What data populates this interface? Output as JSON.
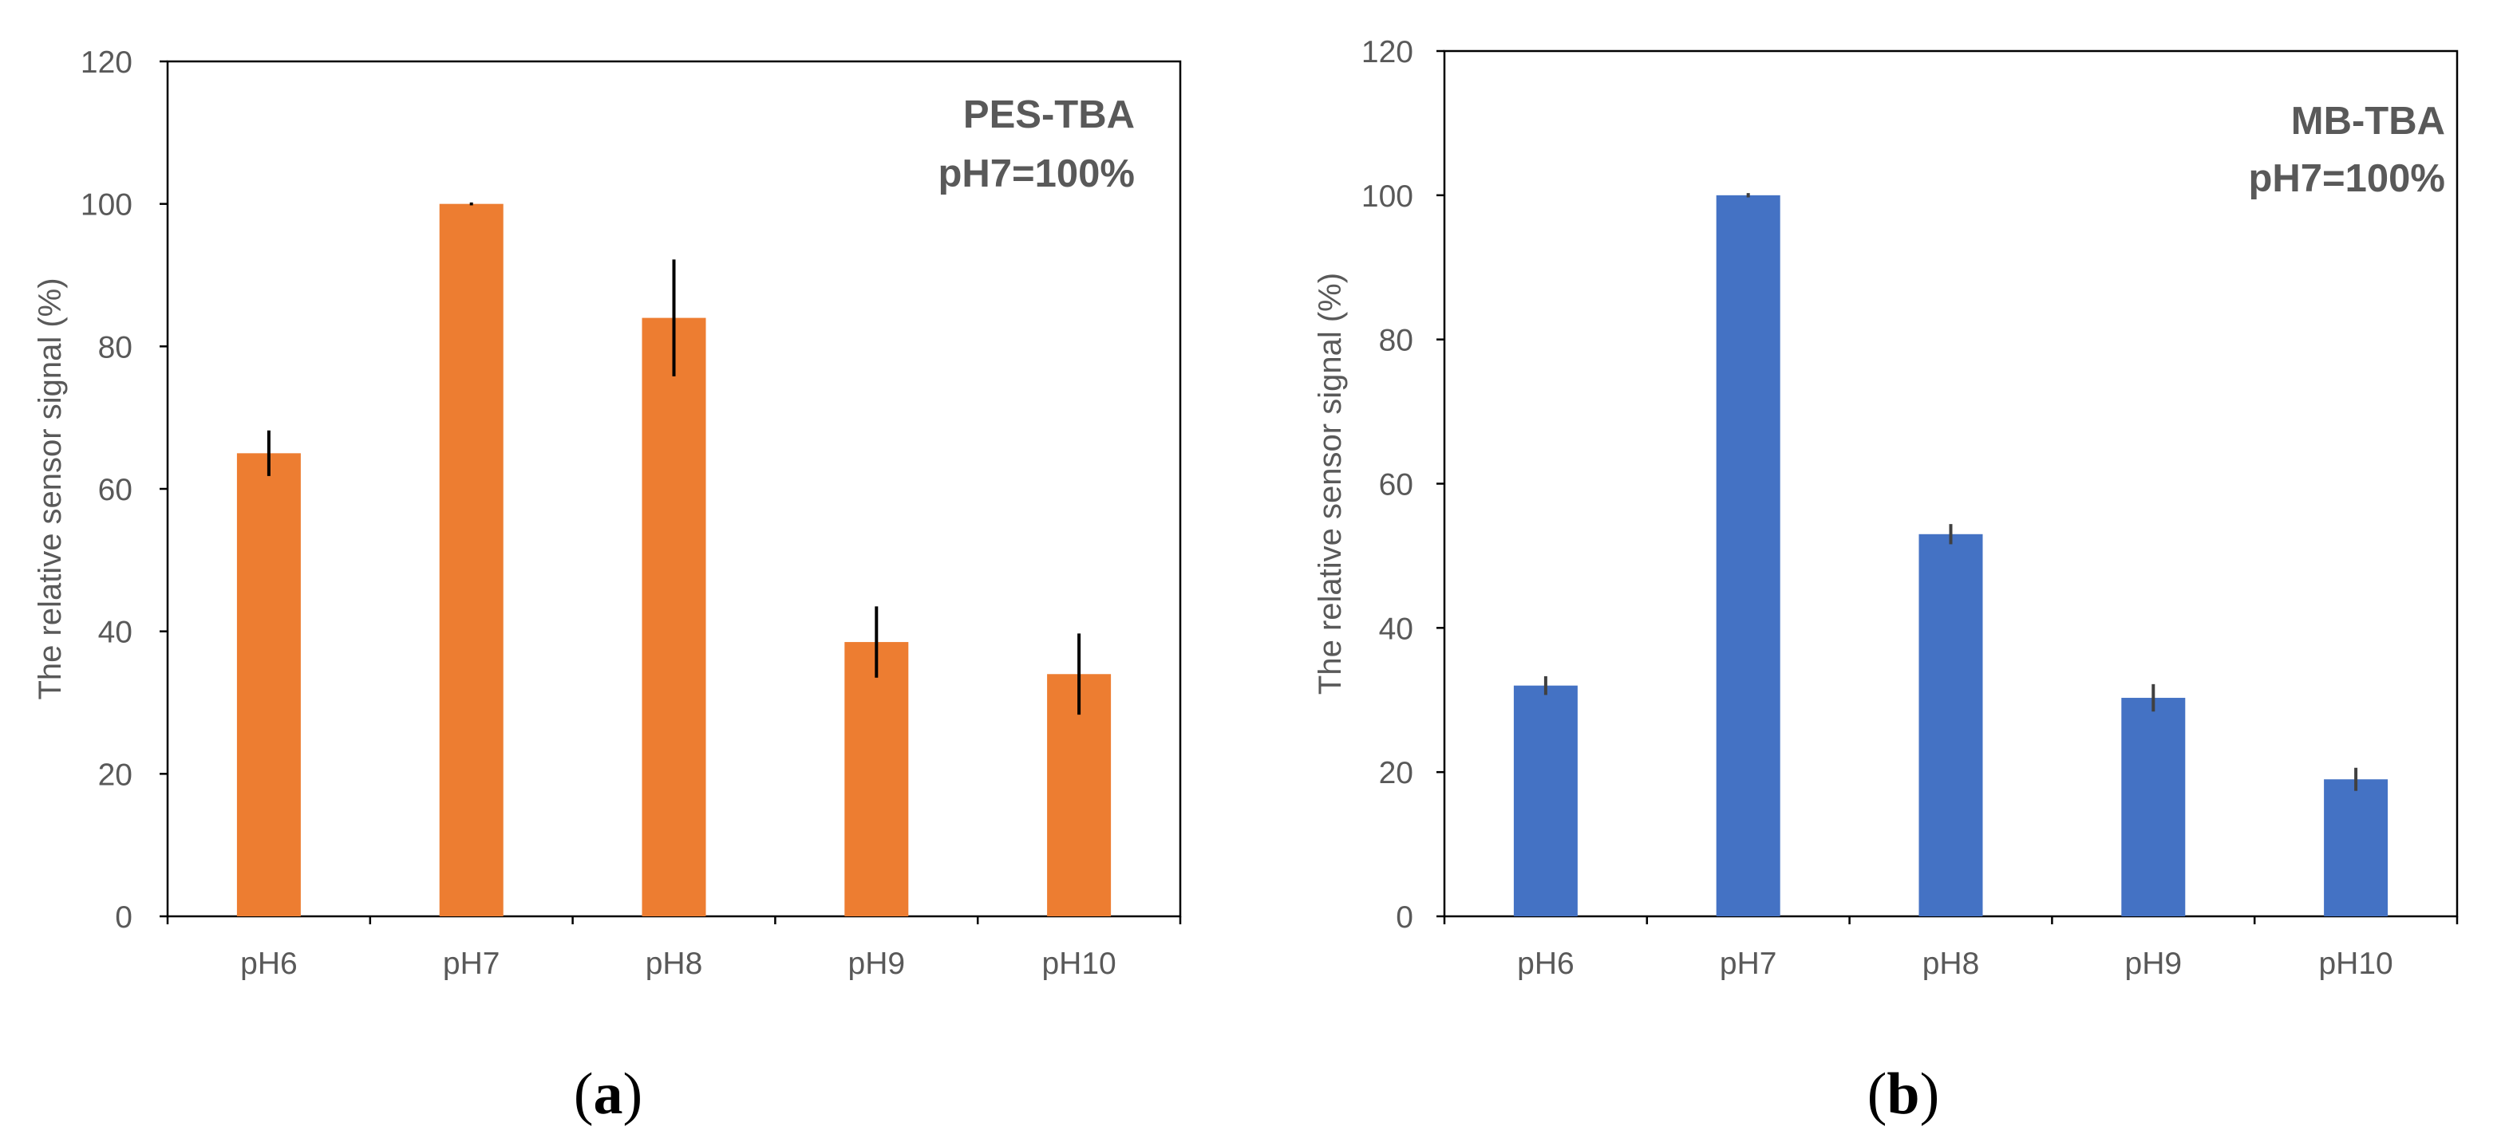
{
  "chart_data": [
    {
      "type": "bar",
      "panel_label": "a",
      "categories": [
        "pH6",
        "pH7",
        "pH8",
        "pH9",
        "pH10"
      ],
      "values": [
        65,
        100,
        84,
        38.5,
        34
      ],
      "errors": [
        3.2,
        0.2,
        8.2,
        5,
        5.7
      ],
      "title": "",
      "annotation": [
        "PES-TBA",
        "pH7=100%"
      ],
      "legend_position": "top-right",
      "xlabel": "",
      "ylabel": "The relative sensor signal (%)",
      "ylim": [
        0,
        120
      ],
      "yticks": [
        0,
        20,
        40,
        60,
        80,
        100,
        120
      ],
      "bar_color": "#ED7D31",
      "error_color": "#000000",
      "grid": false
    },
    {
      "type": "bar",
      "panel_label": "b",
      "categories": [
        "pH6",
        "pH7",
        "pH8",
        "pH9",
        "pH10"
      ],
      "values": [
        32,
        100,
        53,
        30.3,
        19
      ],
      "errors": [
        1.3,
        0.3,
        1.4,
        1.9,
        1.6
      ],
      "title": "",
      "annotation": [
        "MB-TBA",
        "pH7=100%"
      ],
      "legend_position": "top-right",
      "xlabel": "",
      "ylabel": "The relative sensor signal (%)",
      "ylim": [
        0,
        120
      ],
      "yticks": [
        0,
        20,
        40,
        60,
        80,
        100,
        120
      ],
      "bar_color": "#4472C4",
      "error_color": "#404040",
      "grid": false
    }
  ]
}
